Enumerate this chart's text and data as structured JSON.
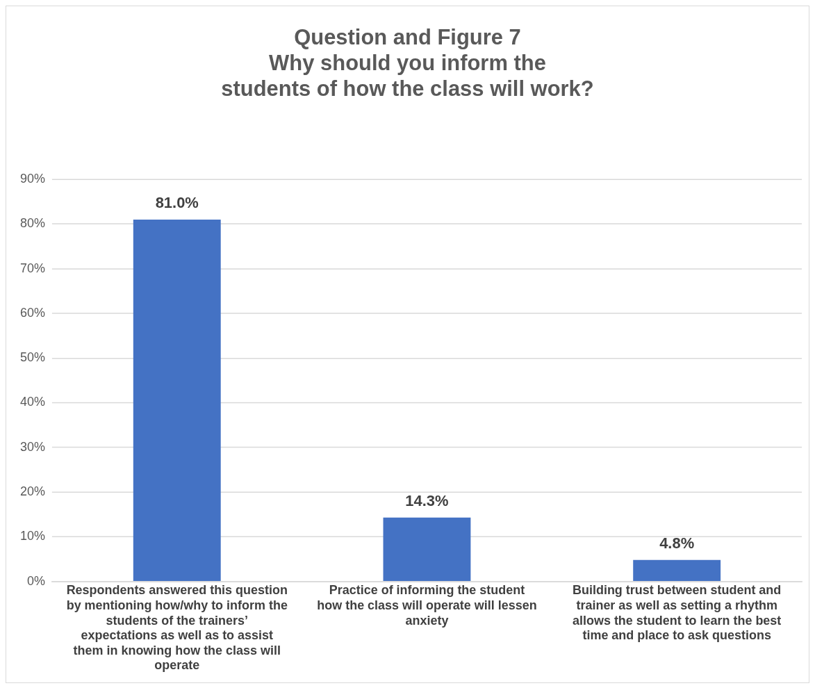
{
  "chart_data": {
    "type": "bar",
    "title": "Question and Figure 7\nWhy should you inform the\nstudents of how the class will work?",
    "categories": [
      "Respondents answered this question by mentioning how/why to inform the students of the trainers’ expectations as well as to assist them in knowing how the class will operate",
      "Practice of informing the student how the class will operate will lessen anxiety",
      "Building trust between student and trainer as well as setting a rhythm allows the student to learn the best time and place to ask questions"
    ],
    "values": [
      81.0,
      14.3,
      4.8
    ],
    "color": "#4472c4",
    "value_labels": [
      "81.0%",
      "14.3%",
      "4.8%"
    ],
    "ylim": [
      0,
      90
    ],
    "yticks": [
      {
        "value": 0,
        "label": "0%"
      },
      {
        "value": 10,
        "label": "10%"
      },
      {
        "value": 20,
        "label": "20%"
      },
      {
        "value": 30,
        "label": "30%"
      },
      {
        "value": 40,
        "label": "40%"
      },
      {
        "value": 50,
        "label": "50%"
      },
      {
        "value": 60,
        "label": "60%"
      },
      {
        "value": 70,
        "label": "70%"
      },
      {
        "value": 80,
        "label": "80%"
      },
      {
        "value": 90,
        "label": "90%"
      }
    ],
    "grid": "y",
    "legend": false
  }
}
